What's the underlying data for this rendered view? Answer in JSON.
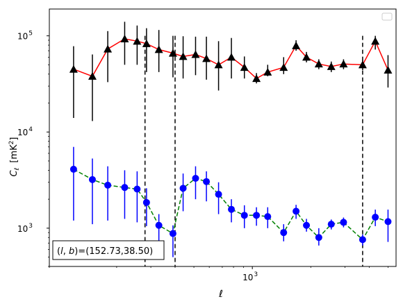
{
  "chart_data": {
    "type": "scatter",
    "xlabel": "ℓ",
    "ylabel_main": "C",
    "ylabel_sub": "ℓ",
    "ylabel_unit": "[mK",
    "ylabel_unit_sup": "2",
    "ylabel_unit_end": "]",
    "x_scale": "log",
    "y_scale": "log",
    "xlim": [
      90,
      5500
    ],
    "ylim": [
      400,
      190000
    ],
    "x_ticks": [
      {
        "value": 1000,
        "base": "10",
        "exp": "3"
      }
    ],
    "y_ticks": [
      {
        "value": 1000,
        "base": "10",
        "exp": "3"
      },
      {
        "value": 10000,
        "base": "10",
        "exp": "4"
      },
      {
        "value": 100000,
        "base": "10",
        "exp": "5"
      }
    ],
    "grid": false,
    "legend": "upper right (empty)",
    "annotation": {
      "text": "(l, b)=(152.73,38.50)",
      "prefix": "(",
      "l": "l",
      "sep": ", ",
      "b": "b",
      "suffix": ")=(152.73,38.50)"
    },
    "vlines": [
      280,
      400,
      3700
    ],
    "colors": {
      "upper_line": "#ff0000",
      "upper_marker": "#000000",
      "lower_line": "#008000",
      "lower_marker": "#0000ff"
    },
    "series": [
      {
        "marker": "triangle",
        "line": "solid red",
        "x": [
          120,
          150,
          180,
          220,
          255,
          285,
          330,
          390,
          440,
          510,
          580,
          670,
          780,
          910,
          1050,
          1200,
          1450,
          1680,
          1900,
          2200,
          2550,
          2950,
          3700,
          4300,
          5000
        ],
        "y": [
          45000,
          38000,
          73000,
          93000,
          88000,
          83000,
          72000,
          66000,
          61000,
          64000,
          58000,
          50000,
          60000,
          47000,
          36000,
          42000,
          47000,
          79000,
          60000,
          51000,
          48000,
          51000,
          50000,
          88000,
          44000
        ],
        "yerr_low": [
          14000,
          13000,
          33000,
          50000,
          50000,
          42000,
          42000,
          37000,
          36000,
          39000,
          35000,
          27000,
          36000,
          36000,
          32000,
          38000,
          40000,
          70000,
          53000,
          45000,
          42000,
          45000,
          44000,
          72000,
          29000
        ],
        "yerr_high": [
          78000,
          64000,
          112000,
          140000,
          128000,
          120000,
          115000,
          100000,
          99000,
          98000,
          98000,
          88000,
          95000,
          61000,
          41000,
          50000,
          60000,
          90000,
          68000,
          57000,
          54000,
          57000,
          56000,
          100000,
          63000
        ]
      },
      {
        "marker": "circle",
        "line": "dashed green",
        "x": [
          120,
          150,
          180,
          220,
          255,
          285,
          330,
          390,
          440,
          510,
          580,
          670,
          780,
          910,
          1050,
          1200,
          1450,
          1680,
          1900,
          2200,
          2550,
          2950,
          3700,
          4300,
          5000
        ],
        "y": [
          4100,
          3200,
          2800,
          2650,
          2550,
          1850,
          1070,
          880,
          2600,
          3300,
          3050,
          2250,
          1570,
          1360,
          1360,
          1320,
          900,
          1500,
          1070,
          800,
          1100,
          1150,
          760,
          1300,
          1170
        ],
        "yerr_low": [
          1200,
          1100,
          1200,
          1250,
          1150,
          1050,
          600,
          500,
          1500,
          2000,
          1900,
          1400,
          1150,
          1000,
          1060,
          1000,
          730,
          1250,
          920,
          660,
          970,
          1020,
          660,
          1050,
          720
        ],
        "yerr_high": [
          7000,
          5300,
          4400,
          4000,
          3900,
          2600,
          1400,
          1070,
          3700,
          4400,
          3900,
          3000,
          2000,
          1730,
          1650,
          1650,
          1100,
          1750,
          1250,
          1000,
          1230,
          1290,
          860,
          1560,
          1560
        ]
      }
    ]
  }
}
